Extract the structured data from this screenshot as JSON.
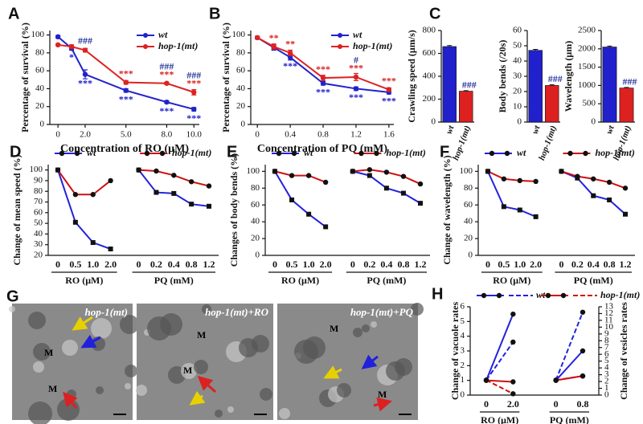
{
  "chart_data": [
    {
      "panel": "A",
      "type": "line",
      "xlabel": "Concentration of RO (μM)",
      "ylabel": "Percentage of survival (%)",
      "x": [
        0,
        1,
        2,
        5,
        8,
        10
      ],
      "xlim": [
        -0.6,
        10.4
      ],
      "xticks": [
        0,
        {
          "value": 2,
          "label": "2.0"
        },
        {
          "value": 5,
          "label": "5.0"
        },
        {
          "value": 8,
          "label": "8.0"
        },
        {
          "value": 10,
          "label": "10.0"
        }
      ],
      "ylim": [
        0,
        105
      ],
      "yticks": [
        0,
        20,
        40,
        60,
        80,
        100
      ],
      "legend": "upper right",
      "series": [
        {
          "name": "wt",
          "color": "#2222cc",
          "values": [
            98,
            85,
            56,
            38,
            25,
            17
          ],
          "errors": [
            1.5,
            2,
            5,
            2,
            1.5,
            2
          ],
          "annotations": [
            null,
            "*",
            "***",
            "***",
            "***",
            "***"
          ]
        },
        {
          "name": "hop-1(mt)",
          "color": "#dd2222",
          "values": [
            89,
            87,
            83,
            47,
            46,
            36
          ],
          "errors": [
            1,
            2,
            2,
            2,
            1.5,
            3
          ],
          "annotations": [
            null,
            null,
            null,
            "***",
            "***",
            "***"
          ],
          "hash_annotations": [
            null,
            null,
            "###",
            null,
            "###",
            "###"
          ]
        }
      ]
    },
    {
      "panel": "B",
      "type": "line",
      "xlabel": "Concentration of PQ (mM)",
      "ylabel": "Percentage of survival (%)",
      "x": [
        0,
        0.2,
        0.4,
        0.8,
        1.2,
        1.6
      ],
      "xlim": [
        -0.08,
        1.66
      ],
      "xticks": [
        0,
        0.4,
        0.8,
        1.2,
        1.6
      ],
      "ylim": [
        0,
        105
      ],
      "yticks": [
        0,
        20,
        40,
        60,
        80,
        100
      ],
      "legend": "upper right",
      "series": [
        {
          "name": "wt",
          "color": "#2222cc",
          "values": [
            97,
            86,
            75,
            46,
            40,
            36
          ],
          "errors": [
            1.5,
            3,
            3,
            2,
            2,
            2
          ],
          "annotations": [
            null,
            null,
            "***",
            "***",
            "***",
            "***"
          ]
        },
        {
          "name": "hop-1(mt)",
          "color": "#dd2222",
          "values": [
            97,
            87,
            80,
            52,
            53,
            39
          ],
          "errors": [
            1.5,
            3,
            3,
            3,
            4,
            2
          ],
          "annotations": [
            null,
            "**",
            "**",
            "***",
            "***",
            "***"
          ],
          "hash_annotations": [
            null,
            null,
            null,
            null,
            "#",
            null
          ]
        }
      ]
    },
    {
      "panel": "C",
      "type": "bar",
      "ylabel": "Crawling speed (μm/s)",
      "categories": [
        "wt",
        "hop-1(mt)"
      ],
      "values": [
        660,
        270
      ],
      "errors": [
        8,
        5
      ],
      "colors": [
        "#2020cc",
        "#dd2020"
      ],
      "annotations": [
        null,
        "###"
      ],
      "ylim": [
        0,
        800
      ],
      "yticks": [
        0,
        200,
        400,
        600,
        800
      ]
    },
    {
      "type": "bar",
      "ylabel": "Body  bends (/20s)",
      "categories": [
        "wt",
        "hop-1(mt)"
      ],
      "values": [
        47,
        24
      ],
      "errors": [
        0.6,
        0.4
      ],
      "colors": [
        "#2020cc",
        "#dd2020"
      ],
      "annotations": [
        null,
        "###"
      ],
      "ylim": [
        0,
        60
      ],
      "yticks": [
        0,
        10,
        20,
        30,
        40,
        50,
        60
      ]
    },
    {
      "type": "bar",
      "ylabel": "Wavelength (μm)",
      "categories": [
        "wt",
        "hop-1(mt)"
      ],
      "values": [
        2050,
        930
      ],
      "errors": [
        25,
        15
      ],
      "colors": [
        "#2020cc",
        "#dd2020"
      ],
      "annotations": [
        null,
        "###"
      ],
      "ylim": [
        0,
        2500
      ],
      "yticks": [
        0,
        500,
        1000,
        1500,
        2000,
        2500
      ]
    },
    {
      "panel": "D",
      "type": "grouped-line",
      "ylabel": "Change of mean speed (%)",
      "groups": [
        {
          "label": "RO (μM)",
          "categories": [
            "0",
            "0.5",
            "1.0",
            "2.0"
          ]
        },
        {
          "label": "PQ (mM)",
          "categories": [
            "0",
            "0.2",
            "0.4",
            "0.8",
            "1.2"
          ]
        }
      ],
      "ylim": [
        20,
        105
      ],
      "yticks": [
        20,
        30,
        40,
        50,
        60,
        70,
        80,
        90,
        100
      ],
      "series": [
        {
          "name": "wt",
          "color": "#2222dd",
          "values": [
            [
              100,
              51,
              32,
              26
            ],
            [
              100,
              79,
              78,
              68,
              66
            ]
          ]
        },
        {
          "name": "hop-1(mt)",
          "color": "#cc1111",
          "values": [
            [
              100,
              77,
              77,
              90
            ],
            [
              100,
              99,
              95,
              89,
              85
            ]
          ]
        }
      ]
    },
    {
      "panel": "E",
      "type": "grouped-line",
      "ylabel": "Changes of body bends (%)",
      "groups": [
        {
          "label": "RO (μM)",
          "categories": [
            "0",
            "0.5",
            "1.0",
            "2.0"
          ]
        },
        {
          "label": "PQ (mM)",
          "categories": [
            "0",
            "0.2",
            "0.4",
            "0.8",
            "1.2"
          ]
        }
      ],
      "ylim": [
        0,
        108
      ],
      "yticks": [
        0,
        20,
        40,
        60,
        80,
        100
      ],
      "series": [
        {
          "name": "wt",
          "color": "#2222dd",
          "values": [
            [
              100,
              66,
              49,
              34
            ],
            [
              100,
              95,
              80,
              74,
              62
            ]
          ]
        },
        {
          "name": "hop-1(mt)",
          "color": "#cc1111",
          "values": [
            [
              100,
              95,
              95,
              87
            ],
            [
              100,
              102,
              99,
              94,
              85
            ]
          ]
        }
      ]
    },
    {
      "panel": "F",
      "type": "grouped-line",
      "ylabel": "Change of wavelength (%)",
      "groups": [
        {
          "label": "RO (μM)",
          "categories": [
            "0",
            "0.5",
            "1.0",
            "2.0"
          ]
        },
        {
          "label": "PQ (mM)",
          "categories": [
            "0",
            "0.2",
            "0.4",
            "0.8",
            "1.2"
          ]
        }
      ],
      "ylim": [
        0,
        108
      ],
      "yticks": [
        0,
        20,
        40,
        60,
        80,
        100
      ],
      "series": [
        {
          "name": "wt",
          "color": "#2222dd",
          "values": [
            [
              100,
              58,
              54,
              46
            ],
            [
              100,
              92,
              71,
              66,
              49
            ]
          ]
        },
        {
          "name": "hop-1(mt)",
          "color": "#cc1111",
          "values": [
            [
              100,
              91,
              89,
              88
            ],
            [
              100,
              94,
              91,
              87,
              80
            ]
          ]
        }
      ]
    },
    {
      "panel": "H",
      "type": "grouped-line",
      "ylabel": "Change of vacuole rates",
      "y2label": "Change of vesicles rates",
      "groups": [
        {
          "label": "RO (μM)",
          "categories": [
            "0",
            "2.0"
          ]
        },
        {
          "label": "PQ (mM)",
          "categories": [
            "0",
            "0.8"
          ]
        }
      ],
      "ylim": [
        0,
        6
      ],
      "yticks": [
        0,
        1,
        2,
        3,
        4,
        5,
        6
      ],
      "y2lim": [
        0,
        13
      ],
      "y2ticks": [
        0,
        1,
        2,
        3,
        4,
        5,
        6,
        7,
        8,
        9,
        10,
        11,
        12,
        13
      ],
      "series": [
        {
          "name": "wt",
          "color": "#2222dd",
          "values": [
            [
              1,
              5.5
            ],
            [
              1,
              3.0
            ]
          ],
          "y2_values": [
            [
              2.2,
              7.8
            ],
            [
              2.2,
              12.2
            ]
          ]
        },
        {
          "name": "hop-1(mt)",
          "color": "#cc1111",
          "values": [
            [
              1,
              0.9
            ],
            [
              1,
              1.3
            ]
          ],
          "y2_values": [
            [
              2.2,
              0.2
            ],
            [
              2.2,
              2.8
            ]
          ]
        }
      ]
    }
  ],
  "micrographs": {
    "panel": "G",
    "images": [
      {
        "label": "hop-1(mt)",
        "markers": [
          "M",
          "M"
        ]
      },
      {
        "label": "hop-1(mt)+RO",
        "markers": [
          "M",
          "M"
        ]
      },
      {
        "label": "hop-1(mt)+PQ",
        "markers": [
          "M",
          "M"
        ]
      }
    ]
  }
}
